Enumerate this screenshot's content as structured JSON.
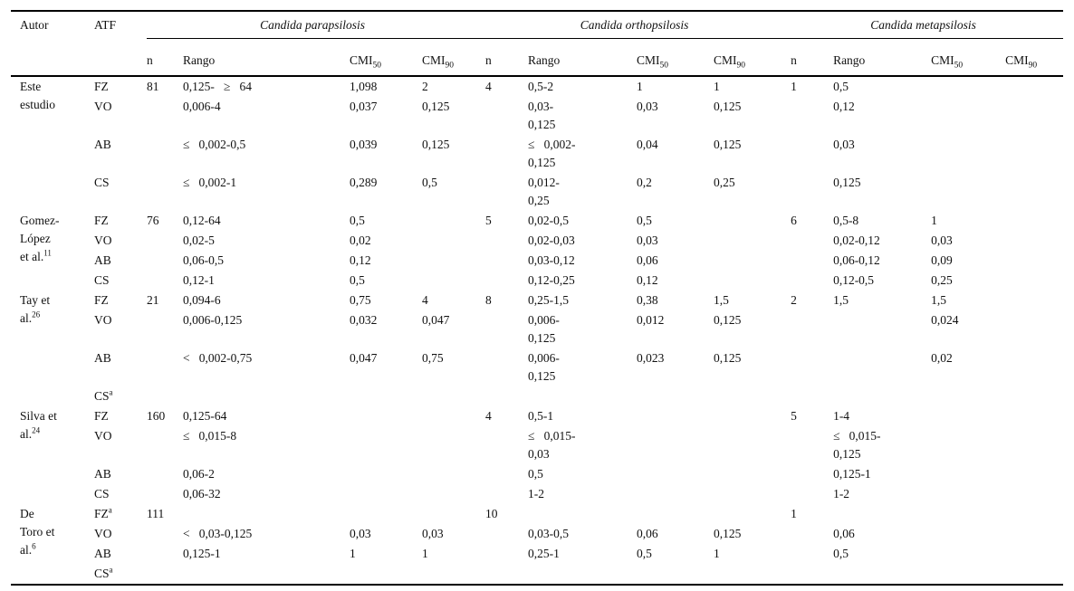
{
  "table": {
    "header": {
      "autor": "Autor",
      "atf": "ATF",
      "species": [
        "Candida parapsilosis",
        "Candida orthopsilosis",
        "Candida metapsilosis"
      ],
      "sub": {
        "n": "n",
        "rango": "Rango",
        "cmi": "CMI",
        "s50": "50",
        "s90": "90"
      }
    },
    "groups": [
      {
        "author": "Este\nestudio",
        "ref": "",
        "rows": [
          {
            "atf": "FZ",
            "sup": "",
            "cells": [
              "81",
              "0,125-   ≥   64",
              "1,098",
              "2",
              "4",
              "0,5-2",
              "1",
              "1",
              "1",
              "0,5",
              "",
              ""
            ]
          },
          {
            "atf": "VO",
            "sup": "",
            "cells": [
              "",
              "0,006-4",
              "0,037",
              "0,125",
              "",
              "0,03-\n0,125",
              "0,03",
              "0,125",
              "",
              "0,12",
              "",
              ""
            ]
          },
          {
            "atf": "AB",
            "sup": "",
            "cells": [
              "",
              "≤   0,002-0,5",
              "0,039",
              "0,125",
              "",
              "≤   0,002-\n0,125",
              "0,04",
              "0,125",
              "",
              "0,03",
              "",
              ""
            ]
          },
          {
            "atf": "CS",
            "sup": "",
            "cells": [
              "",
              "≤   0,002-1",
              "0,289",
              "0,5",
              "",
              "0,012-\n0,25",
              "0,2",
              "0,25",
              "",
              "0,125",
              "",
              ""
            ]
          }
        ]
      },
      {
        "author": "Gomez-\nLópez\net al.",
        "ref": "11",
        "rows": [
          {
            "atf": "FZ",
            "sup": "",
            "cells": [
              "76",
              "0,12-64",
              "0,5",
              "",
              "5",
              "0,02-0,5",
              "0,5",
              "",
              "6",
              "0,5-8",
              "1",
              ""
            ]
          },
          {
            "atf": "VO",
            "sup": "",
            "cells": [
              "",
              "0,02-5",
              "0,02",
              "",
              "",
              "0,02-0,03",
              "0,03",
              "",
              "",
              "0,02-0,12",
              "0,03",
              ""
            ]
          },
          {
            "atf": "AB",
            "sup": "",
            "cells": [
              "",
              "0,06-0,5",
              "0,12",
              "",
              "",
              "0,03-0,12",
              "0,06",
              "",
              "",
              "0,06-0,12",
              "0,09",
              ""
            ]
          },
          {
            "atf": "CS",
            "sup": "",
            "cells": [
              "",
              "0,12-1",
              "0,5",
              "",
              "",
              "0,12-0,25",
              "0,12",
              "",
              "",
              "0,12-0,5",
              "0,25",
              ""
            ]
          }
        ]
      },
      {
        "author": "Tay et\nal.",
        "ref": "26",
        "rows": [
          {
            "atf": "FZ",
            "sup": "",
            "cells": [
              "21",
              "0,094-6",
              "0,75",
              "4",
              "8",
              "0,25-1,5",
              "0,38",
              "1,5",
              "2",
              "1,5",
              "1,5",
              ""
            ]
          },
          {
            "atf": "VO",
            "sup": "",
            "cells": [
              "",
              "0,006-0,125",
              "0,032",
              "0,047",
              "",
              "0,006-\n0,125",
              "0,012",
              "0,125",
              "",
              "",
              "0,024",
              ""
            ]
          },
          {
            "atf": "AB",
            "sup": "",
            "cells": [
              "",
              "<   0,002-0,75",
              "0,047",
              "0,75",
              "",
              "0,006-\n0,125",
              "0,023",
              "0,125",
              "",
              "",
              "0,02",
              ""
            ]
          },
          {
            "atf": "CS",
            "sup": "a",
            "cells": [
              "",
              "",
              "",
              "",
              "",
              "",
              "",
              "",
              "",
              "",
              "",
              ""
            ]
          }
        ]
      },
      {
        "author": "Silva et\nal.",
        "ref": "24",
        "rows": [
          {
            "atf": "FZ",
            "sup": "",
            "cells": [
              "160",
              "0,125-64",
              "",
              "",
              "4",
              "0,5-1",
              "",
              "",
              "5",
              "1-4",
              "",
              ""
            ]
          },
          {
            "atf": "VO",
            "sup": "",
            "cells": [
              "",
              "≤   0,015-8",
              "",
              "",
              "",
              "≤   0,015-\n0,03",
              "",
              "",
              "",
              "≤   0,015-\n0,125",
              "",
              ""
            ]
          },
          {
            "atf": "AB",
            "sup": "",
            "cells": [
              "",
              "0,06-2",
              "",
              "",
              "",
              "0,5",
              "",
              "",
              "",
              "0,125-1",
              "",
              ""
            ]
          },
          {
            "atf": "CS",
            "sup": "",
            "cells": [
              "",
              "0,06-32",
              "",
              "",
              "",
              "1-2",
              "",
              "",
              "",
              "1-2",
              "",
              ""
            ]
          }
        ]
      },
      {
        "author": "De\nToro et\nal.",
        "ref": "6",
        "rows": [
          {
            "atf": "FZ",
            "sup": "a",
            "cells": [
              "111",
              "",
              "",
              "",
              "10",
              "",
              "",
              "",
              "1",
              "",
              "",
              ""
            ]
          },
          {
            "atf": "VO",
            "sup": "",
            "cells": [
              "",
              "<   0,03-0,125",
              "0,03",
              "0,03",
              "",
              "0,03-0,5",
              "0,06",
              "0,125",
              "",
              "0,06",
              "",
              ""
            ]
          },
          {
            "atf": "AB",
            "sup": "",
            "cells": [
              "",
              "0,125-1",
              "1",
              "1",
              "",
              "0,25-1",
              "0,5",
              "1",
              "",
              "0,5",
              "",
              ""
            ]
          },
          {
            "atf": "CS",
            "sup": "a",
            "cells": [
              "",
              "",
              "",
              "",
              "",
              "",
              "",
              "",
              "",
              "",
              "",
              ""
            ]
          }
        ]
      }
    ]
  }
}
